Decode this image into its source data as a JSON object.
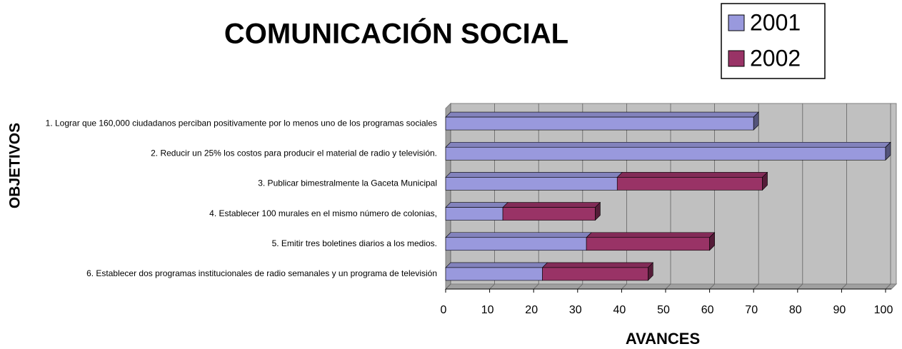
{
  "chart_data": {
    "type": "bar",
    "orientation": "horizontal",
    "stacked": true,
    "title": "COMUNICACIÓN SOCIAL",
    "x_label": "AVANCES",
    "y_label": "OBJETIVOS",
    "categories": [
      "1. Lograr que 160,000 ciudadanos  perciban positivamente por lo menos uno de los programas sociales",
      "2. Reducir un 25% los costos para producir el material de radio y televisión.",
      "3. Publicar bimestralmente la Gaceta Municipal",
      "4. Establecer 100 murales en el mismo número de colonias,",
      "5. Emitir  tres boletines diarios a los medios.",
      "6. Establecer dos programas institucionales de radio semanales y un programa de televisión"
    ],
    "series": [
      {
        "name": "2001",
        "color": "#9999dd",
        "values": [
          70,
          100,
          39,
          13,
          32,
          22
        ]
      },
      {
        "name": "2002",
        "color": "#993366",
        "values": [
          0,
          0,
          33,
          21,
          28,
          24
        ]
      }
    ],
    "xlim": [
      0,
      100
    ],
    "xticks": [
      0,
      10,
      20,
      30,
      40,
      50,
      60,
      70,
      80,
      90,
      100
    ],
    "grid": true,
    "legend": "top-right"
  }
}
